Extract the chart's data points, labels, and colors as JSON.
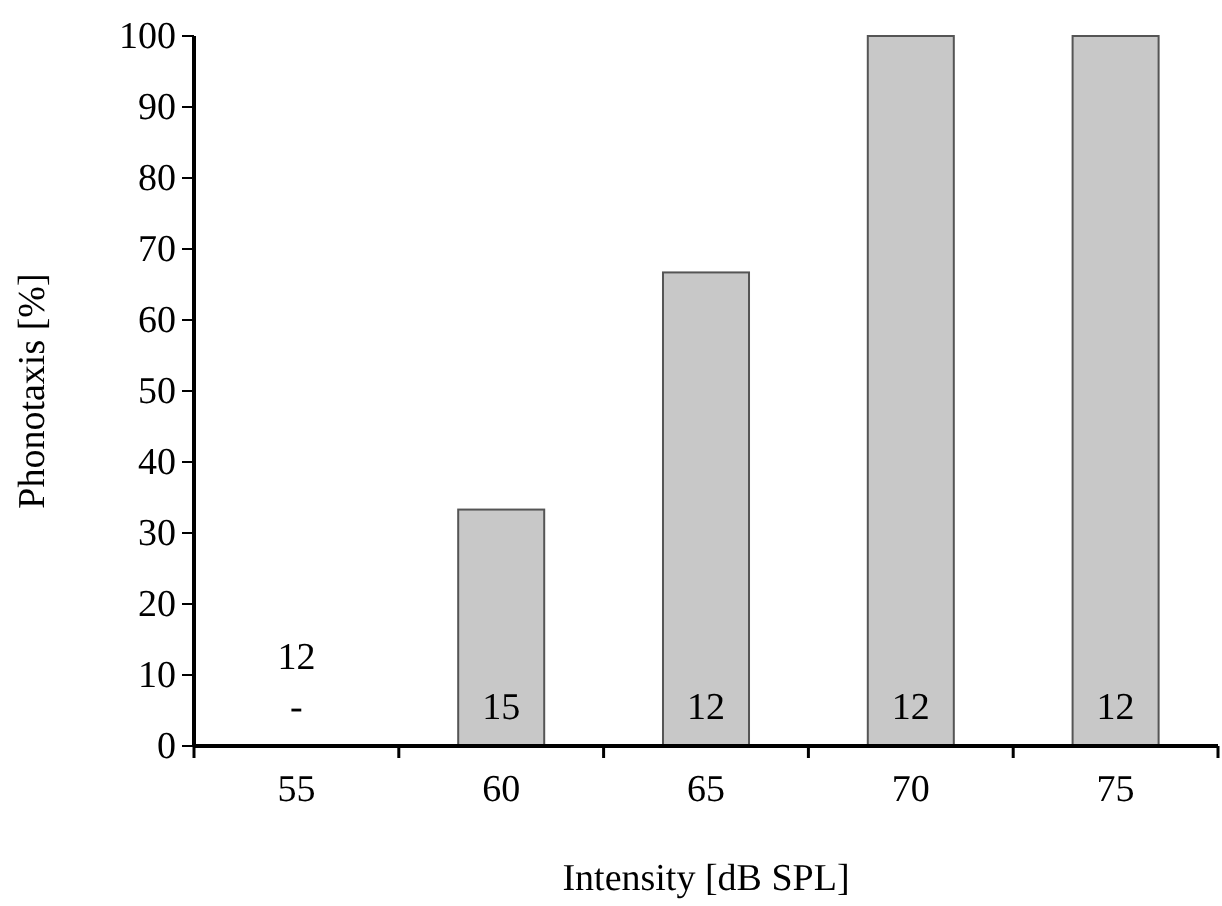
{
  "chart_data": {
    "type": "bar",
    "xlabel": "Intensity [dB SPL]",
    "ylabel": "Phonotaxis [%]",
    "categories": [
      "55",
      "60",
      "65",
      "70",
      "75"
    ],
    "values": [
      0,
      33.3,
      66.7,
      100,
      100
    ],
    "color": "#c8c8c8",
    "ylim": [
      0,
      100
    ],
    "yticks": [
      0,
      10,
      20,
      30,
      40,
      50,
      60,
      70,
      80,
      90,
      100
    ],
    "grid": false,
    "annotations": [
      "12",
      "-",
      "15",
      "12",
      "12",
      "12"
    ]
  }
}
